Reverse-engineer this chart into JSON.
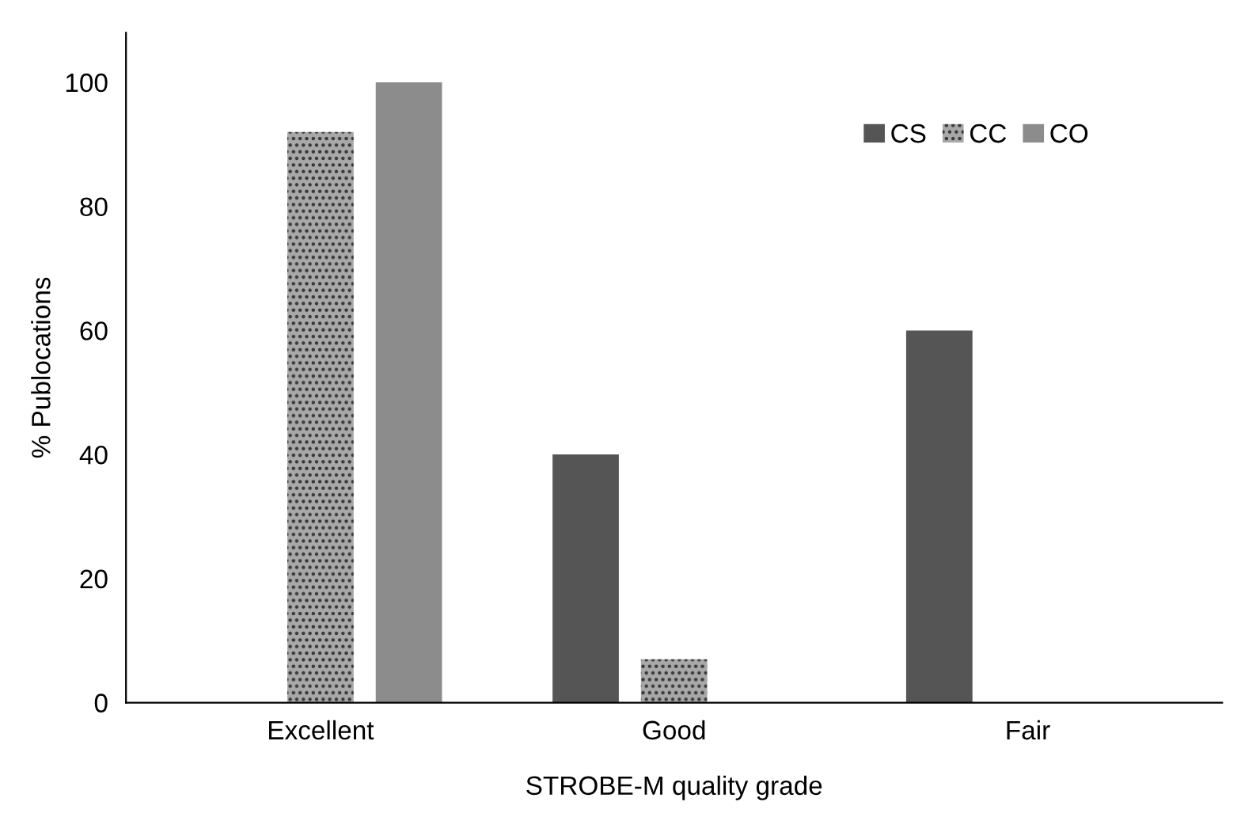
{
  "chart_data": {
    "type": "bar",
    "xlabel": "STROBE-M quality grade",
    "ylabel": "% Publocations",
    "categories": [
      "Excellent",
      "Good",
      "Fair"
    ],
    "series": [
      {
        "name": "CS",
        "color": "#555555",
        "values": [
          0,
          40,
          60
        ]
      },
      {
        "name": "CC",
        "color": "#a8a8a8",
        "values": [
          92,
          7,
          0
        ]
      },
      {
        "name": "CO",
        "color": "#8c8c8c",
        "values": [
          100,
          0,
          0
        ]
      }
    ],
    "ylim": [
      0,
      108
    ],
    "yticks": [
      0,
      20,
      40,
      60,
      80,
      100
    ],
    "grid": false,
    "legend": "top right"
  }
}
